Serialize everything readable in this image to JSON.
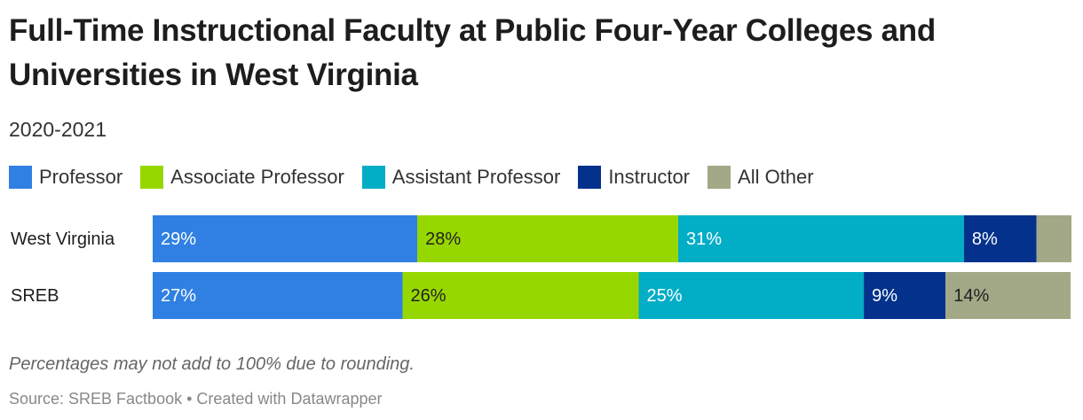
{
  "chart_data": {
    "type": "stacked_bar",
    "title": "Full-Time Instructional Faculty at Public Four-Year Colleges and Universities in West Virginia",
    "subtitle": "2020-2021",
    "categories": [
      "West Virginia",
      "SREB"
    ],
    "series": [
      {
        "name": "Professor",
        "color": "#2f80e2",
        "values": [
          28.8,
          27.2
        ],
        "value_labels": [
          "29%",
          "27%"
        ]
      },
      {
        "name": "Associate Professor",
        "color": "#97d700",
        "values": [
          28.4,
          25.7
        ],
        "value_labels": [
          "28%",
          "26%"
        ]
      },
      {
        "name": "Assistant Professor",
        "color": "#02adc6",
        "values": [
          31.1,
          24.5
        ],
        "value_labels": [
          "31%",
          "25%"
        ]
      },
      {
        "name": "Instructor",
        "color": "#03318c",
        "values": [
          7.9,
          8.9
        ],
        "value_labels": [
          "8%",
          "9%"
        ]
      },
      {
        "name": "All Other",
        "color": "#a3a886",
        "values": [
          3.8,
          13.6
        ],
        "value_labels": [
          null,
          "14%"
        ]
      }
    ],
    "xlim": [
      0,
      100
    ],
    "note": "Percentages may not add to 100% due to rounding.",
    "source": "Source: SREB Factbook • Created with Datawrapper"
  }
}
